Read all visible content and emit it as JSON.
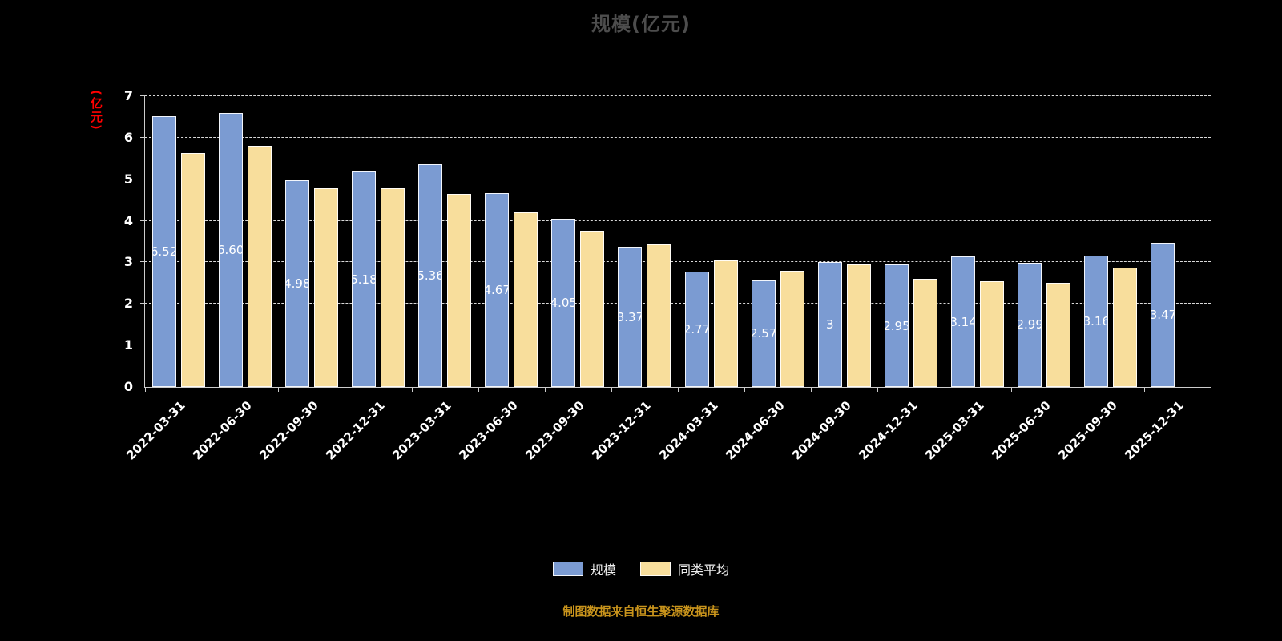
{
  "title": "规模(亿元)",
  "source_note": "制图数据来自恒生聚源数据库",
  "y_axis": {
    "unit_label": "(亿元)",
    "ticks": [
      "0",
      "1",
      "2",
      "3",
      "4",
      "5",
      "6",
      "7"
    ],
    "min": 0,
    "max": 7
  },
  "legend": {
    "items": [
      {
        "label": "规模",
        "color": "#7B9BD2"
      },
      {
        "label": "同类平均",
        "color": "#F8DE9C"
      }
    ]
  },
  "colors": {
    "background": "#000000",
    "scale_bar": "#7B9BD2",
    "average_bar": "#F8DE9C",
    "axis_text": "#FFFFFF",
    "unit_label_text": "#FF0000",
    "title_text": "#4D4D4D",
    "source_note_text": "#C9941C"
  },
  "chart_data": {
    "type": "bar",
    "title": "规模(亿元)",
    "ylabel": "(亿元)",
    "xlabel": "",
    "ylim": [
      0,
      7
    ],
    "grid": true,
    "legend_position": "bottom",
    "categories": [
      "2022-03-31",
      "2022-06-30",
      "2022-09-30",
      "2022-12-31",
      "2023-03-31",
      "2023-06-30",
      "2023-09-30",
      "2023-12-31",
      "2024-03-31",
      "2024-06-30",
      "2024-09-30",
      "2024-12-31",
      "2025-03-31",
      "2025-06-30",
      "2025-09-30",
      "2025-12-31"
    ],
    "series": [
      {
        "name": "规模",
        "color": "#7B9BD2",
        "values": [
          6.52,
          6.6,
          4.98,
          5.18,
          5.36,
          4.67,
          4.05,
          3.37,
          2.77,
          2.57,
          3,
          2.95,
          3.14,
          2.99,
          3.16,
          3.47
        ],
        "bar_labels": [
          "6.52",
          "6.60",
          "4.98",
          "5.18",
          "5.36",
          "4.67",
          "4.05",
          "3.37",
          "2.77",
          "2.57",
          "3",
          "2.95",
          "3.14",
          "2.99",
          "3.16",
          "3.47"
        ]
      },
      {
        "name": "同类平均",
        "color": "#F8DE9C",
        "values": [
          5.63,
          5.8,
          4.78,
          4.78,
          4.65,
          4.2,
          3.76,
          3.43,
          3.05,
          2.8,
          2.95,
          2.6,
          2.55,
          2.51,
          2.88,
          null
        ]
      }
    ]
  }
}
